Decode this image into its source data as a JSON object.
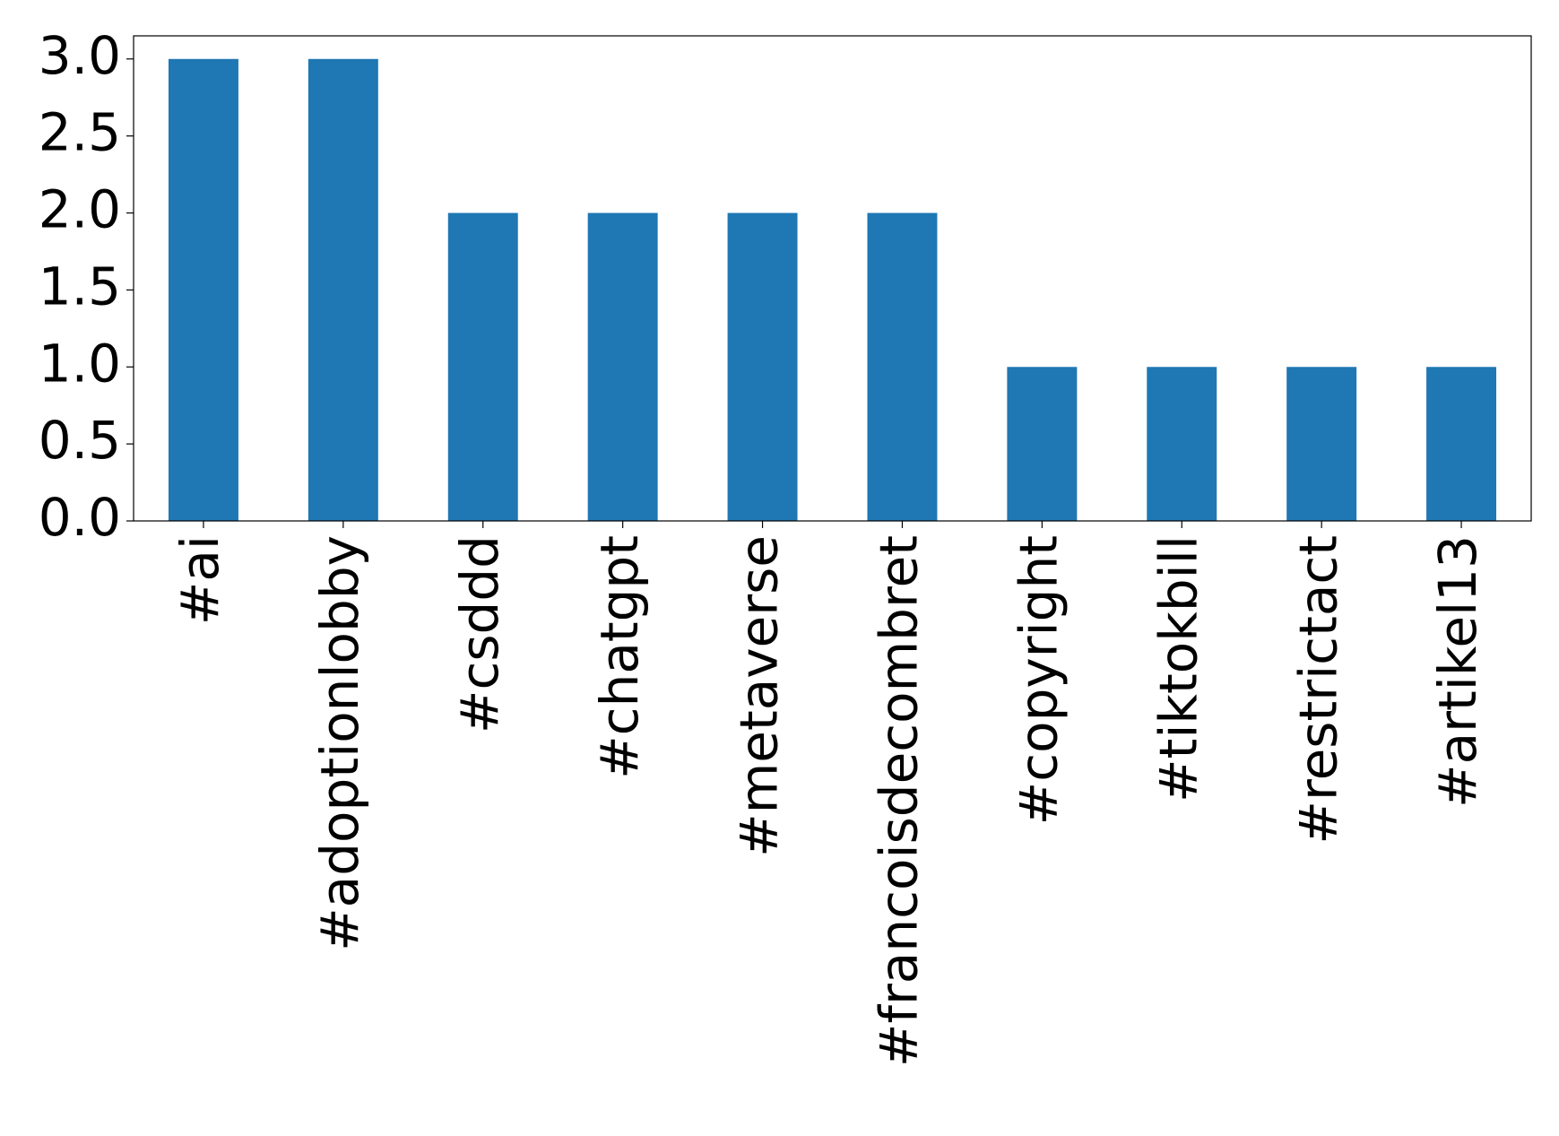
{
  "chart_data": {
    "type": "bar",
    "categories": [
      "#ai",
      "#adoptionlobby",
      "#csddd",
      "#chatgpt",
      "#metaverse",
      "#francoisdecombret",
      "#copyright",
      "#tiktokbill",
      "#restrictact",
      "#artikel13"
    ],
    "values": [
      3,
      3,
      2,
      2,
      2,
      2,
      1,
      1,
      1,
      1
    ],
    "color": "#1f77b4",
    "ylim": [
      0,
      3.15
    ],
    "yticks": [
      {
        "value": 0,
        "label": "0.0"
      },
      {
        "value": 0.5,
        "label": "0.5"
      },
      {
        "value": 1,
        "label": "1.0"
      },
      {
        "value": 1.5,
        "label": "1.5"
      },
      {
        "value": 2,
        "label": "2.0"
      },
      {
        "value": 2.5,
        "label": "2.5"
      },
      {
        "value": 3,
        "label": "3.0"
      }
    ],
    "grid": false
  }
}
